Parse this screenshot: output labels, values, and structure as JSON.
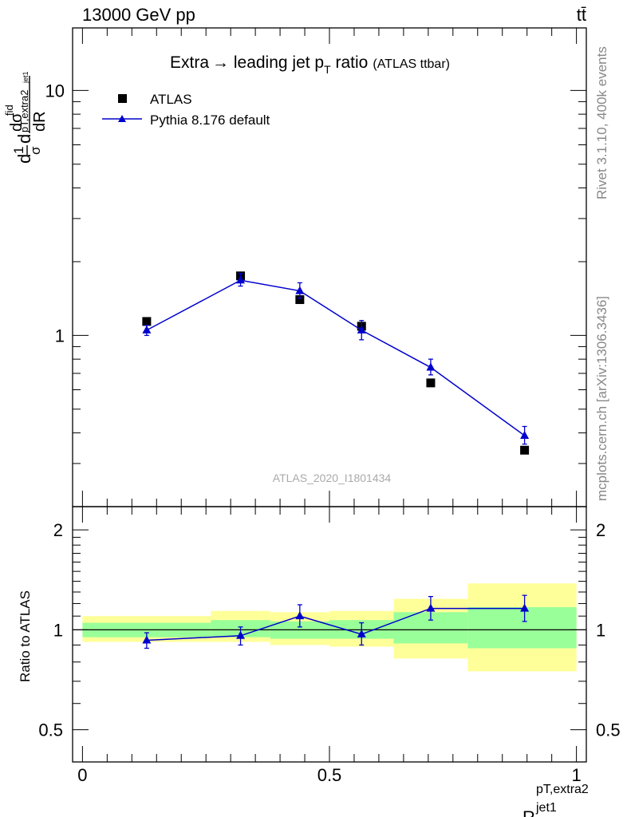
{
  "header": {
    "energy": "13000 GeV pp",
    "process": "tt̄"
  },
  "side_text": {
    "rivet": "Rivet 3.1.10,  400k events",
    "site": "mcplots.cern.ch [arXiv:1306.3436]"
  },
  "watermark": "ATLAS_2020_I1801434",
  "chart_data": [
    {
      "type": "scatter",
      "title_main": "Extra",
      "title_arrow": "→",
      "title_rest": " leading jet p",
      "title_sub": "T",
      "title_tail": " ratio",
      "title_small": "(ATLAS ttbar)",
      "ylabel": "dσ^fid/dR^(pT,extra2)_jet1 · 1/σ",
      "yscale": "log",
      "ylim": [
        0.2,
        18
      ],
      "yticks": [
        1,
        10
      ],
      "ytick_labels": [
        "1",
        "10"
      ],
      "xlim": [
        -0.02,
        1.02
      ],
      "legend_placement": "top-left",
      "series": [
        {
          "name": "ATLAS",
          "marker": "square",
          "color": "#000000",
          "x": [
            0.13,
            0.32,
            0.44,
            0.565,
            0.705,
            0.895
          ],
          "y": [
            1.14,
            1.75,
            1.4,
            1.09,
            0.64,
            0.34
          ]
        },
        {
          "name": "Pythia 8.176 default",
          "marker": "triangle",
          "color": "#0000cc",
          "x": [
            0.13,
            0.32,
            0.44,
            0.565,
            0.705,
            0.895
          ],
          "y": [
            1.05,
            1.68,
            1.52,
            1.05,
            0.74,
            0.39
          ],
          "err_lo": [
            0.05,
            0.09,
            0.1,
            0.09,
            0.05,
            0.03
          ],
          "err_hi": [
            0.05,
            0.11,
            0.12,
            0.1,
            0.06,
            0.035
          ]
        }
      ]
    },
    {
      "type": "scatter",
      "ylabel": "Ratio to ATLAS",
      "xlabel_main": "R",
      "xlabel_sup": "pT,extra2",
      "xlabel_sub": "jet1",
      "ylim": [
        0.4,
        2.35
      ],
      "yticks": [
        0.5,
        1,
        2
      ],
      "ytick_labels": [
        "0.5",
        "1",
        "2"
      ],
      "xlim": [
        -0.02,
        1.02
      ],
      "xticks": [
        0,
        0.5,
        1
      ],
      "xtick_labels": [
        "0",
        "0.5",
        "1"
      ],
      "bands": [
        {
          "x0": 0.0,
          "x1": 0.26,
          "green": [
            0.95,
            1.05
          ],
          "yellow": [
            0.92,
            1.1
          ]
        },
        {
          "x0": 0.26,
          "x1": 0.38,
          "green": [
            0.95,
            1.07
          ],
          "yellow": [
            0.92,
            1.14
          ]
        },
        {
          "x0": 0.38,
          "x1": 0.5,
          "green": [
            0.94,
            1.06
          ],
          "yellow": [
            0.9,
            1.13
          ]
        },
        {
          "x0": 0.5,
          "x1": 0.63,
          "green": [
            0.94,
            1.07
          ],
          "yellow": [
            0.89,
            1.14
          ]
        },
        {
          "x0": 0.63,
          "x1": 0.78,
          "green": [
            0.91,
            1.13
          ],
          "yellow": [
            0.82,
            1.24
          ]
        },
        {
          "x0": 0.78,
          "x1": 1.0,
          "green": [
            0.88,
            1.17
          ],
          "yellow": [
            0.75,
            1.38
          ]
        }
      ],
      "series": [
        {
          "name": "Pythia 8.176 default",
          "color": "#0000cc",
          "x": [
            0.13,
            0.32,
            0.44,
            0.565,
            0.705,
            0.895
          ],
          "y": [
            0.93,
            0.96,
            1.1,
            0.97,
            1.16,
            1.16
          ],
          "err_lo": [
            0.05,
            0.06,
            0.08,
            0.07,
            0.09,
            0.1
          ],
          "err_hi": [
            0.05,
            0.06,
            0.09,
            0.08,
            0.1,
            0.11
          ]
        }
      ]
    }
  ]
}
